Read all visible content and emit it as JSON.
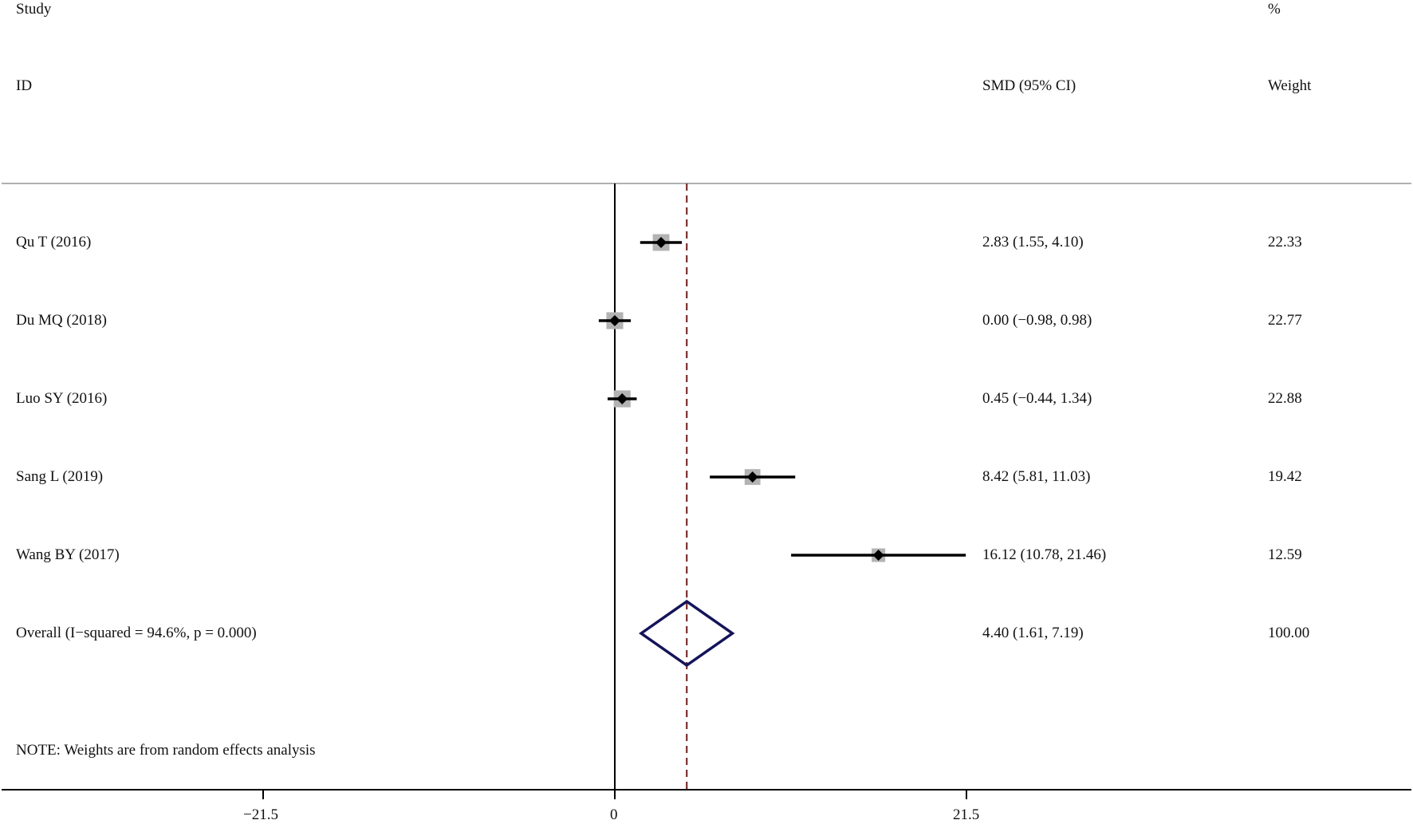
{
  "header": {
    "study_line1": "Study",
    "study_line2": "ID",
    "effect_header": "SMD (95% CI)",
    "weight_line1": "%",
    "weight_line2": "Weight"
  },
  "note": "NOTE: Weights are from random effects analysis",
  "colors": {
    "line": "#000000",
    "weight_box": "#b3b3b3",
    "overall_diamond": "#14145a",
    "reference_dashed": "#6e1a1a",
    "header_rule": "#b0b0b0"
  },
  "chart_data": {
    "type": "forest",
    "title": "",
    "xlabel": "",
    "xlim": [
      -37.5,
      48.4
    ],
    "x_ticks": [
      -21.5,
      0,
      21.5
    ],
    "x_tick_labels": [
      "−21.5",
      "0",
      "21.5"
    ],
    "null_line": 0,
    "studies": [
      {
        "name": "Qu T (2016)",
        "smd": 2.83,
        "ci_low": 1.55,
        "ci_high": 4.1,
        "ci_text": "2.83 (1.55, 4.10)",
        "weight": 22.33,
        "weight_text": "22.33"
      },
      {
        "name": "Du MQ (2018)",
        "smd": 0.0,
        "ci_low": -0.98,
        "ci_high": 0.98,
        "ci_text": "0.00 (−0.98, 0.98)",
        "weight": 22.77,
        "weight_text": "22.77"
      },
      {
        "name": "Luo SY (2016)",
        "smd": 0.45,
        "ci_low": -0.44,
        "ci_high": 1.34,
        "ci_text": "0.45 (−0.44, 1.34)",
        "weight": 22.88,
        "weight_text": "22.88"
      },
      {
        "name": "Sang L (2019)",
        "smd": 8.42,
        "ci_low": 5.81,
        "ci_high": 11.03,
        "ci_text": "8.42 (5.81, 11.03)",
        "weight": 19.42,
        "weight_text": "19.42"
      },
      {
        "name": "Wang BY (2017)",
        "smd": 16.12,
        "ci_low": 10.78,
        "ci_high": 21.46,
        "ci_text": "16.12 (10.78, 21.46)",
        "weight": 12.59,
        "weight_text": "12.59"
      }
    ],
    "overall": {
      "name": "Overall  (I−squared = 94.6%, p = 0.000)",
      "smd": 4.4,
      "ci_low": 1.61,
      "ci_high": 7.19,
      "ci_text": "4.40 (1.61, 7.19)",
      "weight": 100.0,
      "weight_text": "100.00"
    }
  }
}
